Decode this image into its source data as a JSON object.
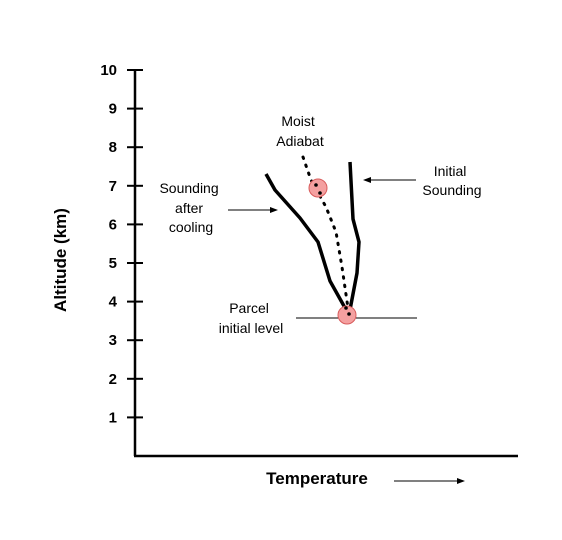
{
  "chart_data": {
    "type": "line",
    "ylabel": "Altitude (km)",
    "xlabel": "Temperature",
    "ylim": [
      0,
      10
    ],
    "yticks": [
      "1",
      "2",
      "3",
      "4",
      "5",
      "6",
      "7",
      "8",
      "9",
      "10"
    ],
    "grid": false,
    "annotations": {
      "moist_adiabat": [
        "Moist",
        "Adiabat"
      ],
      "sounding_after": [
        "Sounding",
        "after",
        "cooling"
      ],
      "initial_sounding": [
        "Initial",
        "Sounding"
      ],
      "parcel_level": [
        "Parcel",
        "initial level"
      ]
    }
  },
  "colors": {
    "axis": "#000000",
    "curve": "#000000",
    "parcel_fill": "#f4a0a0",
    "parcel_stroke": "#d85c5c"
  }
}
